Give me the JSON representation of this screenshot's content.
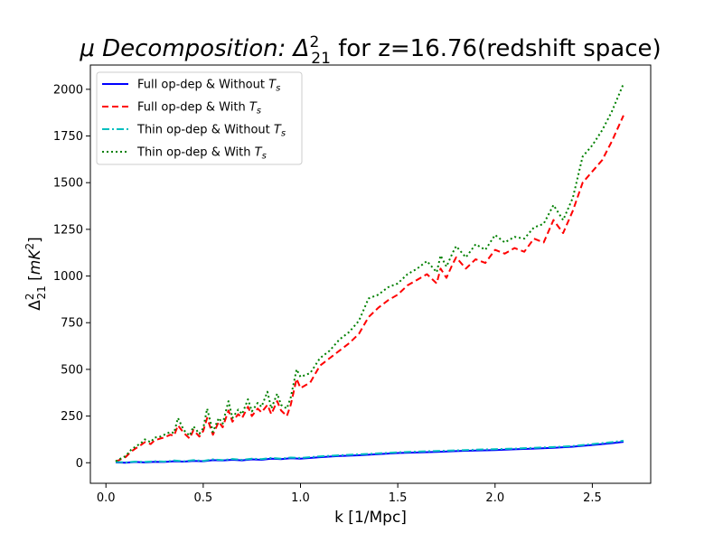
{
  "chart_data": {
    "type": "line",
    "title_main": "μ Decomposition: Δ",
    "title_sup": "2",
    "title_sub": "21",
    "title_rest": " for z=16.76(redshift space)",
    "xlabel": "k [1/Mpc]",
    "ylabel_main": "Δ",
    "ylabel_sup": "2",
    "ylabel_sub": "21",
    "ylabel_rest": " [",
    "ylabel_unit": "mK",
    "ylabel_unit_sup": "2",
    "ylabel_close": "]",
    "xlim": [
      -0.08,
      2.8
    ],
    "ylim": [
      -110,
      2130
    ],
    "xticks": [
      0.0,
      0.5,
      1.0,
      1.5,
      2.0,
      2.5
    ],
    "xtick_labels": [
      "0.0",
      "0.5",
      "1.0",
      "1.5",
      "2.0",
      "2.5"
    ],
    "yticks": [
      0,
      250,
      500,
      750,
      1000,
      1250,
      1500,
      1750,
      2000
    ],
    "ytick_labels": [
      "0",
      "250",
      "500",
      "750",
      "1000",
      "1250",
      "1500",
      "1750",
      "2000"
    ],
    "grid": false,
    "legend_position": "top-left",
    "series": [
      {
        "name_main": "Full op-dep & Without ",
        "name_math": "T",
        "name_sub": "s",
        "color": "#0000ff",
        "dash": "none",
        "x": [
          0.05,
          0.1,
          0.15,
          0.2,
          0.25,
          0.3,
          0.35,
          0.4,
          0.45,
          0.5,
          0.55,
          0.6,
          0.65,
          0.7,
          0.75,
          0.8,
          0.85,
          0.9,
          0.95,
          1.0,
          1.1,
          1.2,
          1.3,
          1.4,
          1.5,
          1.6,
          1.7,
          1.8,
          1.9,
          2.0,
          2.1,
          2.2,
          2.3,
          2.4,
          2.5,
          2.6,
          2.66
        ],
        "y": [
          2,
          0,
          4,
          2,
          5,
          4,
          8,
          6,
          10,
          8,
          14,
          12,
          16,
          13,
          18,
          16,
          22,
          19,
          24,
          22,
          30,
          36,
          40,
          46,
          52,
          55,
          58,
          62,
          65,
          68,
          72,
          76,
          80,
          86,
          95,
          105,
          112
        ]
      },
      {
        "name_main": "Full op-dep & With ",
        "name_math": "T",
        "name_sub": "s",
        "color": "#ff0000",
        "dash": "7,4",
        "x": [
          0.05,
          0.08,
          0.1,
          0.13,
          0.15,
          0.18,
          0.2,
          0.23,
          0.25,
          0.28,
          0.3,
          0.33,
          0.35,
          0.37,
          0.4,
          0.43,
          0.45,
          0.48,
          0.5,
          0.52,
          0.55,
          0.58,
          0.6,
          0.63,
          0.65,
          0.68,
          0.7,
          0.73,
          0.75,
          0.78,
          0.8,
          0.83,
          0.85,
          0.88,
          0.9,
          0.93,
          0.95,
          0.98,
          1.0,
          1.05,
          1.1,
          1.15,
          1.2,
          1.25,
          1.3,
          1.35,
          1.4,
          1.45,
          1.5,
          1.55,
          1.6,
          1.65,
          1.7,
          1.72,
          1.75,
          1.78,
          1.8,
          1.85,
          1.9,
          1.95,
          2.0,
          2.05,
          2.1,
          2.15,
          2.2,
          2.25,
          2.3,
          2.35,
          2.4,
          2.45,
          2.5,
          2.55,
          2.6,
          2.66
        ],
        "y": [
          5,
          20,
          30,
          60,
          75,
          95,
          110,
          100,
          120,
          130,
          135,
          150,
          145,
          200,
          160,
          130,
          175,
          140,
          170,
          240,
          150,
          220,
          190,
          280,
          220,
          260,
          240,
          300,
          250,
          290,
          270,
          310,
          260,
          330,
          280,
          250,
          310,
          450,
          400,
          430,
          520,
          560,
          600,
          640,
          690,
          780,
          830,
          870,
          900,
          950,
          980,
          1010,
          960,
          1040,
          990,
          1060,
          1100,
          1040,
          1090,
          1070,
          1140,
          1120,
          1150,
          1130,
          1200,
          1180,
          1300,
          1230,
          1350,
          1500,
          1560,
          1620,
          1720,
          1860
        ]
      },
      {
        "name_main": "Thin op-dep & Without ",
        "name_math": "T",
        "name_sub": "s",
        "color": "#00bfbf",
        "dash": "8,3,2,3",
        "x": [
          0.05,
          0.1,
          0.15,
          0.2,
          0.25,
          0.3,
          0.35,
          0.4,
          0.45,
          0.5,
          0.55,
          0.6,
          0.65,
          0.7,
          0.75,
          0.8,
          0.85,
          0.9,
          0.95,
          1.0,
          1.1,
          1.2,
          1.3,
          1.4,
          1.5,
          1.6,
          1.7,
          1.8,
          1.9,
          2.0,
          2.1,
          2.2,
          2.3,
          2.4,
          2.5,
          2.6,
          2.66
        ],
        "y": [
          4,
          2,
          6,
          4,
          8,
          6,
          12,
          8,
          14,
          10,
          18,
          14,
          20,
          16,
          22,
          19,
          26,
          22,
          28,
          26,
          34,
          40,
          45,
          50,
          56,
          60,
          63,
          66,
          70,
          73,
          76,
          80,
          84,
          90,
          100,
          110,
          118
        ]
      },
      {
        "name_main": "Thin op-dep & With ",
        "name_math": "T",
        "name_sub": "s",
        "color": "#008000",
        "dash": "2,3",
        "x": [
          0.05,
          0.08,
          0.1,
          0.13,
          0.15,
          0.18,
          0.2,
          0.23,
          0.25,
          0.28,
          0.3,
          0.33,
          0.35,
          0.37,
          0.4,
          0.43,
          0.45,
          0.48,
          0.5,
          0.52,
          0.55,
          0.58,
          0.6,
          0.63,
          0.65,
          0.68,
          0.7,
          0.73,
          0.75,
          0.78,
          0.8,
          0.83,
          0.85,
          0.88,
          0.9,
          0.93,
          0.95,
          0.98,
          1.0,
          1.05,
          1.1,
          1.15,
          1.2,
          1.25,
          1.3,
          1.35,
          1.4,
          1.45,
          1.5,
          1.55,
          1.6,
          1.65,
          1.7,
          1.72,
          1.75,
          1.78,
          1.8,
          1.85,
          1.9,
          1.95,
          2.0,
          2.05,
          2.1,
          2.15,
          2.2,
          2.25,
          2.3,
          2.35,
          2.4,
          2.45,
          2.5,
          2.55,
          2.6,
          2.66
        ],
        "y": [
          8,
          25,
          35,
          70,
          85,
          105,
          125,
          110,
          135,
          140,
          150,
          165,
          160,
          240,
          175,
          145,
          195,
          155,
          185,
          290,
          165,
          240,
          210,
          330,
          240,
          285,
          260,
          340,
          275,
          320,
          300,
          380,
          290,
          370,
          310,
          290,
          350,
          500,
          460,
          480,
          560,
          600,
          660,
          700,
          760,
          880,
          900,
          940,
          960,
          1010,
          1040,
          1080,
          1020,
          1110,
          1050,
          1120,
          1160,
          1100,
          1170,
          1140,
          1220,
          1180,
          1210,
          1200,
          1260,
          1280,
          1380,
          1300,
          1420,
          1640,
          1700,
          1780,
          1880,
          2030
        ]
      }
    ]
  }
}
